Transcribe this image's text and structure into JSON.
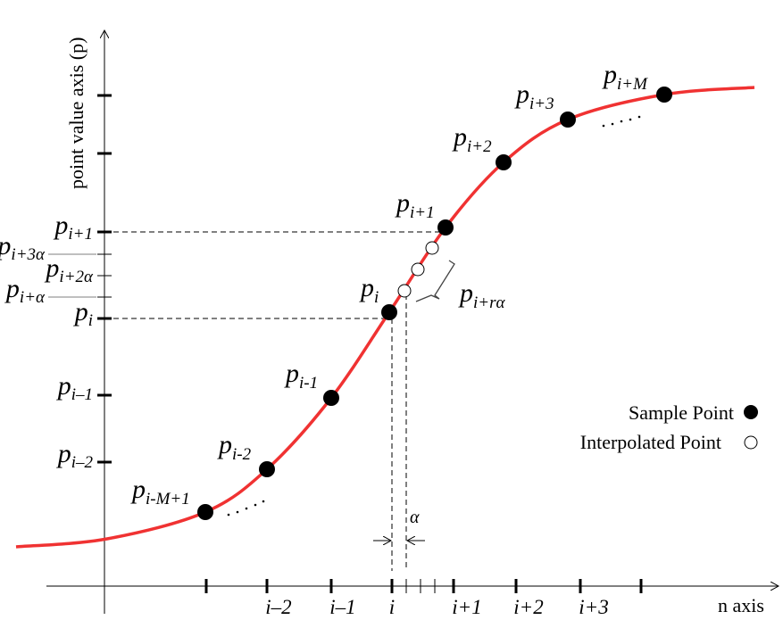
{
  "axes": {
    "y_label": "point value axis (p)",
    "x_label": "n axis"
  },
  "x_ticks": [
    "i–2",
    "i–1",
    "i",
    "i+1",
    "i+2",
    "i+3"
  ],
  "y_labels": [
    {
      "base": "p",
      "sub": "i+1"
    },
    {
      "base": "p",
      "sub": "i+3α"
    },
    {
      "base": "p",
      "sub": "i+2α"
    },
    {
      "base": "p",
      "sub": "i+α"
    },
    {
      "base": "p",
      "sub": "i"
    },
    {
      "base": "p",
      "sub": "i–1"
    },
    {
      "base": "p",
      "sub": "i–2"
    }
  ],
  "point_labels": [
    {
      "base": "p",
      "sub": "i-M+1"
    },
    {
      "base": "p",
      "sub": "i-2"
    },
    {
      "base": "p",
      "sub": "i-1"
    },
    {
      "base": "p",
      "sub": "i"
    },
    {
      "base": "p",
      "sub": "i+1"
    },
    {
      "base": "p",
      "sub": "i+2"
    },
    {
      "base": "p",
      "sub": "i+3"
    },
    {
      "base": "p",
      "sub": "i+M"
    }
  ],
  "interp_label": {
    "base": "p",
    "sub": "i+rα"
  },
  "alpha": "α",
  "legend": {
    "sample": "Sample Point",
    "interpolated": "Interpolated Point"
  },
  "colors": {
    "curve": "#f03232",
    "axis": "#000000"
  }
}
